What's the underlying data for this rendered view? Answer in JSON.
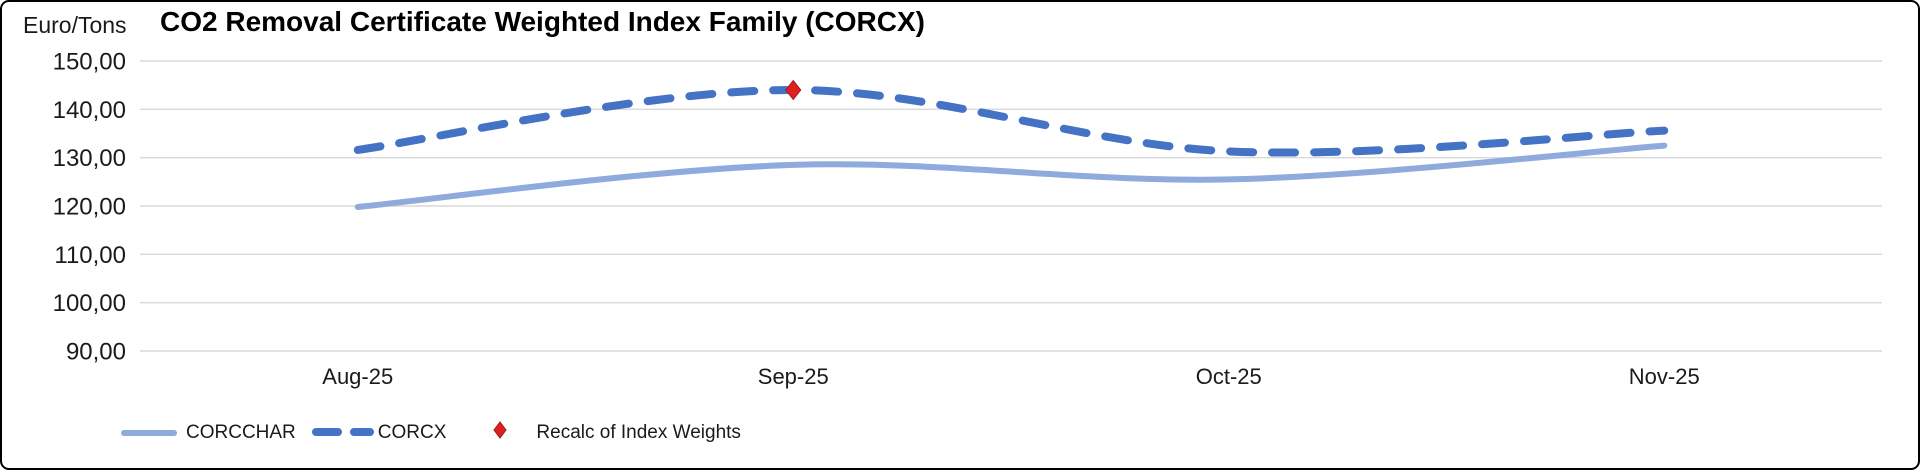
{
  "chart": {
    "unit_label": "Euro/Tons",
    "title": "CO2 Removal Certificate Weighted Index Family (CORCX)"
  },
  "chart_data": {
    "type": "line",
    "title": "CO2 Removal Certificate Weighted Index Family (CORCX)",
    "ylabel": "Euro/Tons",
    "xlabel": "",
    "categories": [
      "Aug-25",
      "Sep-25",
      "Oct-25",
      "Nov-25"
    ],
    "series": [
      {
        "name": "CORCCHAR",
        "style": "solid",
        "color": "#8FAADC",
        "stroke_width": 6,
        "values": [
          119.8,
          128.5,
          125.5,
          132.5
        ]
      },
      {
        "name": "CORCX",
        "style": "dashed",
        "color": "#4472C4",
        "stroke_width": 8,
        "values": [
          131.6,
          144.0,
          131.3,
          135.6
        ]
      }
    ],
    "annotations": [
      {
        "label": "Recalc of Index Weights",
        "series": "CORCX",
        "category": "Sep-25",
        "value": 144.0,
        "marker": "diamond",
        "color": "#e02020"
      }
    ],
    "ylim": [
      90,
      150
    ],
    "ytick_step": 10,
    "yticks": [
      90,
      100,
      110,
      120,
      130,
      140,
      150
    ],
    "ytick_labels": [
      "90,00",
      "100,00",
      "110,00",
      "120,00",
      "130,00",
      "140,00",
      "150,00"
    ],
    "grid": "horizontal",
    "grid_color": "#d9d9d9",
    "legend_position": "bottom-left"
  },
  "legend": {
    "items": [
      {
        "label": "CORCCHAR",
        "swatch": "solid-line",
        "color": "#8FAADC"
      },
      {
        "label": "CORCX",
        "swatch": "dashed-line",
        "color": "#4472C4"
      },
      {
        "label": "Recalc of Index Weights",
        "swatch": "diamond",
        "color": "#e02020"
      }
    ]
  }
}
